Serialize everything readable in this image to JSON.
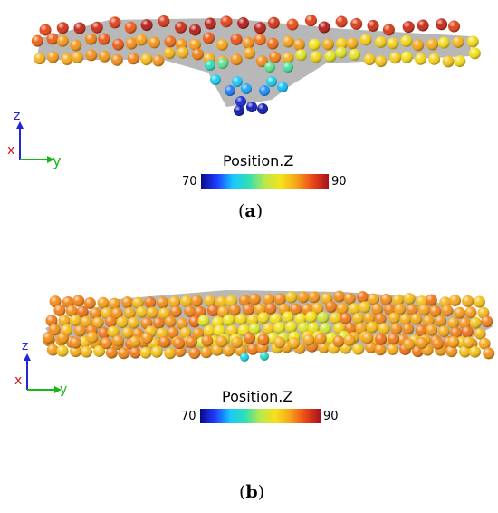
{
  "panels": [
    {
      "id": "a",
      "caption_open": "(",
      "caption_letter": "a",
      "caption_close": ")",
      "colorbar": {
        "title": "Position.Z",
        "min": "70",
        "max": "90"
      },
      "axes": {
        "z": "z",
        "x": "x",
        "y": "y"
      }
    },
    {
      "id": "b",
      "caption_open": "(",
      "caption_letter": "b",
      "caption_close": ")",
      "colorbar": {
        "title": "Position.Z",
        "min": "70",
        "max": "90"
      },
      "axes": {
        "z": "z",
        "x": "x",
        "y": "y"
      }
    }
  ],
  "colormap": [
    "#0a0a8c",
    "#1f3dff",
    "#19c8ff",
    "#2fe0b4",
    "#b8e84a",
    "#f6e21a",
    "#f7a21a",
    "#ea4818",
    "#a6101a"
  ],
  "colors": {
    "axis_x": "#d01414",
    "axis_y": "#16b816",
    "axis_z": "#2424d8",
    "surface": "#b8b8b8"
  }
}
